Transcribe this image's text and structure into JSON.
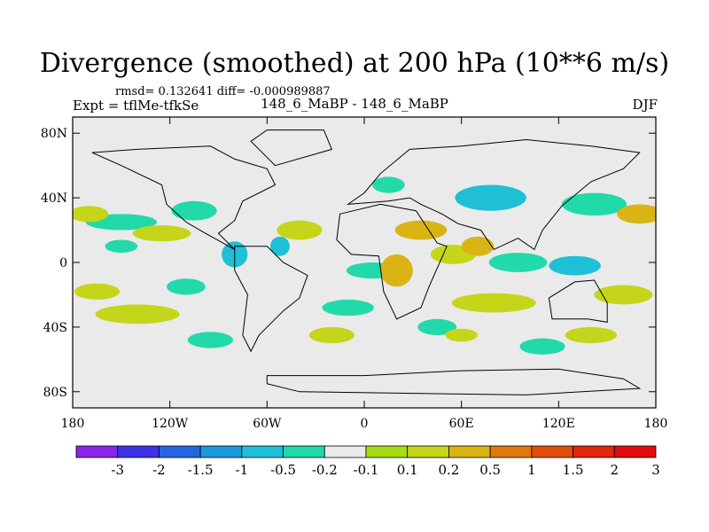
{
  "header": {
    "title": "Divergence (smoothed) at 200 hPa (10**6 m/s)",
    "stats": "rmsd= 0.132641 diff= -0.000989887",
    "experiment": "Expt = tflMe-tfkSe",
    "case_label": "148_6_MaBP - 148_6_MaBP",
    "season": "DJF"
  },
  "chart_data": {
    "type": "heatmap",
    "title": "Divergence (smoothed) at 200 hPa (10**6 m/s)",
    "x_range": [
      -180,
      180
    ],
    "y_range": [
      -90,
      90
    ],
    "x_ticks": [
      {
        "value": -180,
        "label": "180"
      },
      {
        "value": -120,
        "label": "120W"
      },
      {
        "value": -60,
        "label": "60W"
      },
      {
        "value": 0,
        "label": "0"
      },
      {
        "value": 60,
        "label": "60E"
      },
      {
        "value": 120,
        "label": "120E"
      },
      {
        "value": 180,
        "label": "180"
      }
    ],
    "y_ticks": [
      {
        "value": 80,
        "label": "80N"
      },
      {
        "value": 40,
        "label": "40N"
      },
      {
        "value": 0,
        "label": "0"
      },
      {
        "value": -40,
        "label": "40S"
      },
      {
        "value": -80,
        "label": "80S"
      }
    ],
    "colorbar": {
      "colors": [
        "#8c26e6",
        "#3c33e6",
        "#2366e0",
        "#1a99dc",
        "#1fc0d6",
        "#22d9aa",
        "#eaeaea",
        "#a6dc14",
        "#c5d61a",
        "#d9b414",
        "#e07a0e",
        "#e04e0c",
        "#e0280c",
        "#e00c0c"
      ],
      "labels": [
        "-3",
        "-2",
        "-1.5",
        "-1",
        "-0.5",
        "-0.2",
        "-0.1",
        "0.1",
        "0.2",
        "0.5",
        "1",
        "1.5",
        "2",
        "3"
      ]
    },
    "regions": [
      {
        "lon": -150,
        "lat": 25,
        "rx": 22,
        "ry": 5,
        "level": "-0.2"
      },
      {
        "lon": -105,
        "lat": 32,
        "rx": 14,
        "ry": 6,
        "level": "-0.2"
      },
      {
        "lon": -150,
        "lat": 10,
        "rx": 10,
        "ry": 4,
        "level": "-0.2"
      },
      {
        "lon": -80,
        "lat": 5,
        "rx": 8,
        "ry": 8,
        "level": "-0.5"
      },
      {
        "lon": -52,
        "lat": 10,
        "rx": 6,
        "ry": 6,
        "level": "-0.5"
      },
      {
        "lon": 15,
        "lat": 48,
        "rx": 10,
        "ry": 5,
        "level": "-0.2"
      },
      {
        "lon": 78,
        "lat": 40,
        "rx": 22,
        "ry": 8,
        "level": "-0.5"
      },
      {
        "lon": 142,
        "lat": 36,
        "rx": 20,
        "ry": 7,
        "level": "-0.2"
      },
      {
        "lon": 95,
        "lat": 0,
        "rx": 18,
        "ry": 6,
        "level": "-0.2"
      },
      {
        "lon": 130,
        "lat": -2,
        "rx": 16,
        "ry": 6,
        "level": "-0.5"
      },
      {
        "lon": 5,
        "lat": -5,
        "rx": 16,
        "ry": 5,
        "level": "-0.2"
      },
      {
        "lon": -10,
        "lat": -28,
        "rx": 16,
        "ry": 5,
        "level": "-0.2"
      },
      {
        "lon": -110,
        "lat": -15,
        "rx": 12,
        "ry": 5,
        "level": "-0.2"
      },
      {
        "lon": -95,
        "lat": -48,
        "rx": 14,
        "ry": 5,
        "level": "-0.2"
      },
      {
        "lon": 45,
        "lat": -40,
        "rx": 12,
        "ry": 5,
        "level": "-0.2"
      },
      {
        "lon": 110,
        "lat": -52,
        "rx": 14,
        "ry": 5,
        "level": "-0.2"
      },
      {
        "lon": -170,
        "lat": 30,
        "rx": 12,
        "ry": 5,
        "level": "0.2"
      },
      {
        "lon": -125,
        "lat": 18,
        "rx": 18,
        "ry": 5,
        "level": "0.2"
      },
      {
        "lon": -40,
        "lat": 20,
        "rx": 14,
        "ry": 6,
        "level": "0.2"
      },
      {
        "lon": 35,
        "lat": 20,
        "rx": 16,
        "ry": 6,
        "level": "0.5"
      },
      {
        "lon": 55,
        "lat": 5,
        "rx": 14,
        "ry": 6,
        "level": "0.2"
      },
      {
        "lon": 70,
        "lat": 10,
        "rx": 10,
        "ry": 6,
        "level": "0.5"
      },
      {
        "lon": 170,
        "lat": 30,
        "rx": 14,
        "ry": 6,
        "level": "0.5"
      },
      {
        "lon": -140,
        "lat": -32,
        "rx": 26,
        "ry": 6,
        "level": "0.2"
      },
      {
        "lon": -165,
        "lat": -18,
        "rx": 14,
        "ry": 5,
        "level": "0.2"
      },
      {
        "lon": 20,
        "lat": -5,
        "rx": 10,
        "ry": 10,
        "level": "0.5"
      },
      {
        "lon": 80,
        "lat": -25,
        "rx": 26,
        "ry": 6,
        "level": "0.2"
      },
      {
        "lon": 160,
        "lat": -20,
        "rx": 18,
        "ry": 6,
        "level": "0.2"
      },
      {
        "lon": 140,
        "lat": -45,
        "rx": 16,
        "ry": 5,
        "level": "0.2"
      },
      {
        "lon": -20,
        "lat": -45,
        "rx": 14,
        "ry": 5,
        "level": "0.2"
      },
      {
        "lon": 60,
        "lat": -45,
        "rx": 10,
        "ry": 4,
        "level": "0.2"
      }
    ]
  }
}
